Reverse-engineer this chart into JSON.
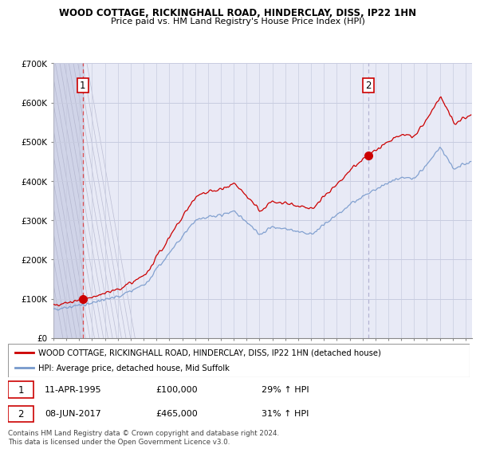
{
  "title": "WOOD COTTAGE, RICKINGHALL ROAD, HINDERCLAY, DISS, IP22 1HN",
  "subtitle": "Price paid vs. HM Land Registry's House Price Index (HPI)",
  "legend_line1": "WOOD COTTAGE, RICKINGHALL ROAD, HINDERCLAY, DISS, IP22 1HN (detached house)",
  "legend_line2": "HPI: Average price, detached house, Mid Suffolk",
  "sale1_date": "11-APR-1995",
  "sale1_price": "£100,000",
  "sale1_hpi": "29% ↑ HPI",
  "sale2_date": "08-JUN-2017",
  "sale2_price": "£465,000",
  "sale2_hpi": "31% ↑ HPI",
  "footnote": "Contains HM Land Registry data © Crown copyright and database right 2024.\nThis data is licensed under the Open Government Licence v3.0.",
  "sale1_year": 1995.28,
  "sale2_year": 2017.44,
  "sale1_value": 100000,
  "sale2_value": 465000,
  "red_color": "#cc0000",
  "blue_color": "#7799cc",
  "bg_color": "#e8eaf6",
  "hatch_bg": "#d0d4e8",
  "grid_color": "#c8cce0",
  "vline1_color": "#dd3333",
  "vline2_color": "#aaaacc",
  "ylim_max": 700000,
  "xlim_min": 1993.0,
  "xlim_max": 2025.5
}
